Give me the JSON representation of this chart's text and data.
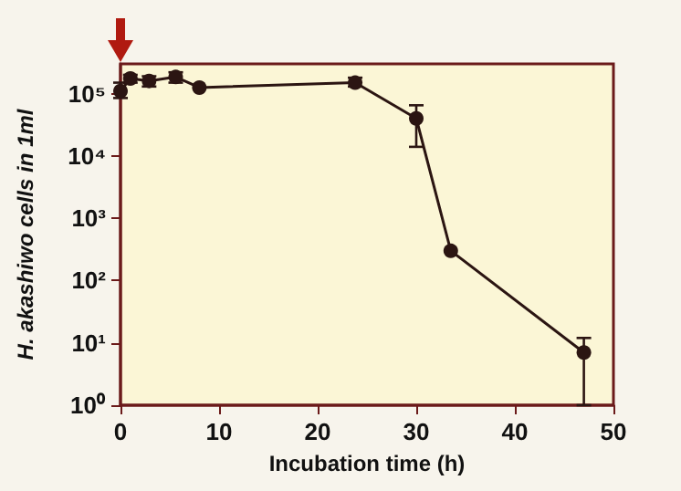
{
  "chart_data": {
    "type": "line",
    "xlabel": "Incubation time (h)",
    "ylabel": "H. akashiwo cells in 1ml",
    "x": [
      0,
      1,
      2.9,
      5.6,
      8,
      23.8,
      30,
      33.5,
      47
    ],
    "values": [
      110000,
      175000,
      160000,
      185000,
      125000,
      150000,
      40000,
      300,
      7
    ],
    "errors": [
      [
        85000,
        150000
      ],
      [
        150000,
        200000
      ],
      [
        130000,
        190000
      ],
      [
        150000,
        220000
      ],
      null,
      [
        130000,
        180000
      ],
      [
        14000,
        65000
      ],
      null,
      [
        1,
        12
      ]
    ],
    "color": "#2b1512",
    "marker": "circle",
    "log": true,
    "xlim": [
      0,
      50
    ],
    "xticks": [
      0,
      10,
      20,
      30,
      40,
      50
    ],
    "ylim": [
      1,
      300000
    ],
    "yticks": [
      {
        "value": 1,
        "label": "10⁰"
      },
      {
        "value": 10,
        "label": "10¹"
      },
      {
        "value": 100,
        "label": "10²"
      },
      {
        "value": 1000,
        "label": "10³"
      },
      {
        "value": 10000,
        "label": "10⁴"
      },
      {
        "value": 100000,
        "label": "10⁵"
      }
    ]
  }
}
